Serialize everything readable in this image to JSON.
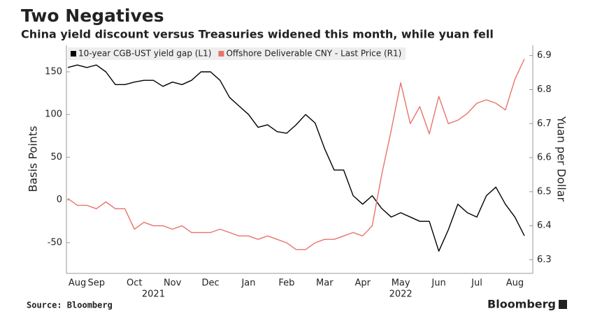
{
  "chart_data": {
    "type": "line",
    "title": "Two Negatives",
    "subtitle": "China yield discount versus Treasuries widened this month, while yuan fell",
    "y_label": "Basis Points",
    "y2_label": "Yuan per Dollar",
    "source": "Source: Bloomberg",
    "brand": "Bloomberg",
    "year_labels": [
      "2021",
      "2022"
    ],
    "categories": [
      null,
      "Aug",
      null,
      "Sep",
      null,
      null,
      null,
      "Oct",
      null,
      null,
      null,
      "Nov",
      null,
      null,
      null,
      "Dec",
      null,
      null,
      null,
      "Jan",
      null,
      null,
      null,
      "Feb",
      null,
      null,
      null,
      "Mar",
      null,
      null,
      null,
      "Apr",
      null,
      null,
      null,
      "May",
      null,
      null,
      null,
      "Jun",
      null,
      null,
      null,
      "Jul",
      null,
      null,
      null,
      "Aug",
      null
    ],
    "series": [
      {
        "name": "10-year CGB-UST yield gap (L1)",
        "color": "#000000",
        "axis": "y",
        "values": [
          155,
          158,
          155,
          158,
          150,
          135,
          135,
          138,
          140,
          140,
          133,
          138,
          135,
          140,
          150,
          150,
          140,
          120,
          110,
          100,
          85,
          88,
          80,
          78,
          88,
          100,
          90,
          60,
          35,
          35,
          5,
          -5,
          5,
          -10,
          -20,
          -15,
          -20,
          -25,
          -25,
          -60,
          -35,
          -5,
          -15,
          -20,
          5,
          15,
          -5,
          -20,
          -42
        ]
      },
      {
        "name": "Offshore Deliverable CNY - Last Price (R1)",
        "color": "#e8736c",
        "axis": "y2",
        "values": [
          6.48,
          6.46,
          6.46,
          6.45,
          6.47,
          6.45,
          6.45,
          6.39,
          6.41,
          6.4,
          6.4,
          6.39,
          6.4,
          6.38,
          6.38,
          6.38,
          6.39,
          6.38,
          6.37,
          6.37,
          6.36,
          6.37,
          6.36,
          6.35,
          6.33,
          6.33,
          6.35,
          6.36,
          6.36,
          6.37,
          6.38,
          6.37,
          6.4,
          6.55,
          6.68,
          6.82,
          6.7,
          6.75,
          6.67,
          6.78,
          6.7,
          6.71,
          6.73,
          6.76,
          6.77,
          6.76,
          6.74,
          6.83,
          6.89
        ]
      }
    ],
    "ylim": [
      -86,
      181
    ],
    "yticks": [
      -50,
      0,
      50,
      100,
      150
    ],
    "y2lim": [
      6.26,
      6.93
    ],
    "y2ticks": [
      6.3,
      6.4,
      6.5,
      6.6,
      6.7,
      6.8,
      6.9
    ],
    "legend": "top-left"
  }
}
